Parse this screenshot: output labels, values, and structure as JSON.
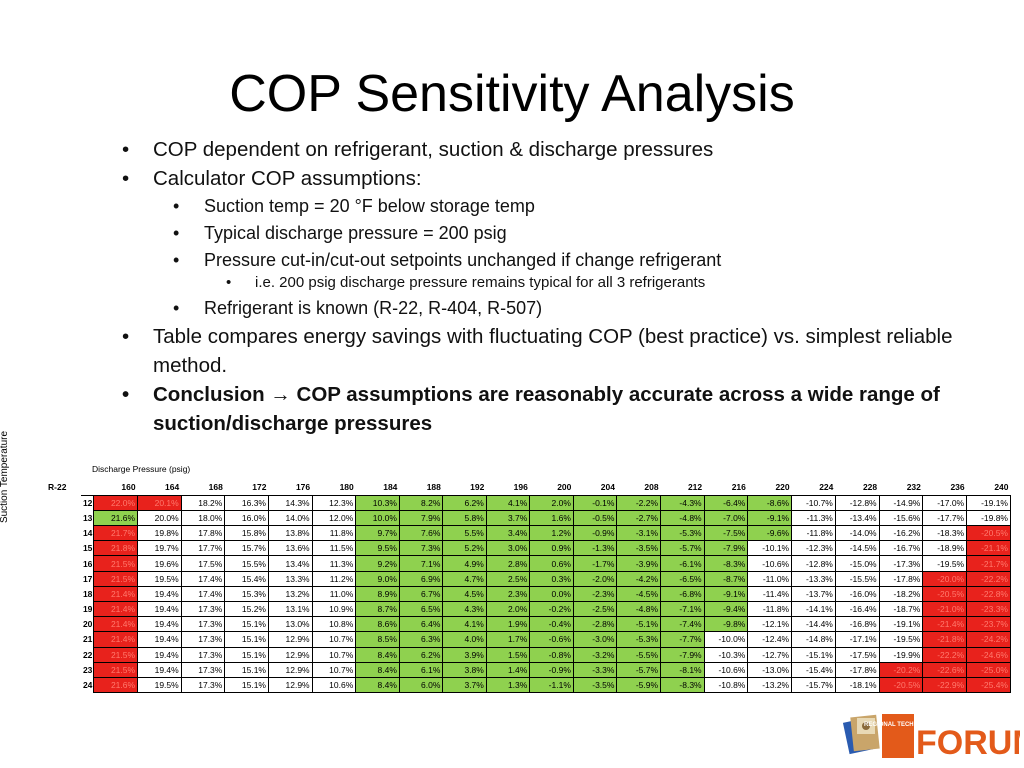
{
  "title": "COP Sensitivity Analysis",
  "bullets": {
    "b1": "COP dependent on refrigerant, suction & discharge pressures",
    "b2": "Calculator COP assumptions:",
    "b2a": "Suction temp = 20 °F below storage temp",
    "b2b": "Typical discharge pressure = 200 psig",
    "b2c": "Pressure cut-in/cut-out setpoints unchanged if change refrigerant",
    "b2c1": "i.e. 200 psig discharge pressure remains typical for all 3 refrigerants",
    "b2d": "Refrigerant is known (R-22, R-404, R-507)",
    "b3": "Table compares energy savings with fluctuating COP (best practice) vs. simplest reliable method.",
    "b4_label": "Conclusion",
    "b4_arrow": "→",
    "b4_text": "COP assumptions are reasonably accurate across a wide range of suction/discharge pressures"
  },
  "table": {
    "refrigerant": "R-22",
    "discharge_caption": "Discharge Pressure (psig)",
    "suction_label": "Suction Temperature",
    "colors": {
      "green": "#8fd14f",
      "red": "#e8221c"
    },
    "columns": [
      "160",
      "164",
      "168",
      "172",
      "176",
      "180",
      "184",
      "188",
      "192",
      "196",
      "200",
      "204",
      "208",
      "212",
      "216",
      "220",
      "224",
      "228",
      "232",
      "236",
      "240"
    ],
    "rows": [
      {
        "label": "12",
        "cells": [
          "22.0%",
          "20.1%",
          "18.2%",
          "16.3%",
          "14.3%",
          "12.3%",
          "10.3%",
          "8.2%",
          "6.2%",
          "4.1%",
          "2.0%",
          "-0.1%",
          "-2.2%",
          "-4.3%",
          "-6.4%",
          "-8.6%",
          "-10.7%",
          "-12.8%",
          "-14.9%",
          "-17.0%",
          "-19.1%"
        ],
        "marks": "rr....gggggggggg....."
      },
      {
        "label": "13",
        "cells": [
          "21.6%",
          "20.0%",
          "18.0%",
          "16.0%",
          "14.0%",
          "12.0%",
          "10.0%",
          "7.9%",
          "5.8%",
          "3.7%",
          "1.6%",
          "-0.5%",
          "-2.7%",
          "-4.8%",
          "-7.0%",
          "-9.1%",
          "-11.3%",
          "-13.4%",
          "-15.6%",
          "-17.7%",
          "-19.8%"
        ],
        "marks": "g.....gggggggggg....."
      },
      {
        "label": "14",
        "cells": [
          "21.7%",
          "19.8%",
          "17.8%",
          "15.8%",
          "13.8%",
          "11.8%",
          "9.7%",
          "7.6%",
          "5.5%",
          "3.4%",
          "1.2%",
          "-0.9%",
          "-3.1%",
          "-5.3%",
          "-7.5%",
          "-9.6%",
          "-11.8%",
          "-14.0%",
          "-16.2%",
          "-18.3%",
          "-20.5%"
        ],
        "marks": "r.....gggggggggg....r"
      },
      {
        "label": "15",
        "cells": [
          "21.8%",
          "19.7%",
          "17.7%",
          "15.7%",
          "13.6%",
          "11.5%",
          "9.5%",
          "7.3%",
          "5.2%",
          "3.0%",
          "0.9%",
          "-1.3%",
          "-3.5%",
          "-5.7%",
          "-7.9%",
          "-10.1%",
          "-12.3%",
          "-14.5%",
          "-16.7%",
          "-18.9%",
          "-21.1%"
        ],
        "marks": "r.....ggggggggg.....r"
      },
      {
        "label": "16",
        "cells": [
          "21.5%",
          "19.6%",
          "17.5%",
          "15.5%",
          "13.4%",
          "11.3%",
          "9.2%",
          "7.1%",
          "4.9%",
          "2.8%",
          "0.6%",
          "-1.7%",
          "-3.9%",
          "-6.1%",
          "-8.3%",
          "-10.6%",
          "-12.8%",
          "-15.0%",
          "-17.3%",
          "-19.5%",
          "-21.7%"
        ],
        "marks": "r.....ggggggggg.....r"
      },
      {
        "label": "17",
        "cells": [
          "21.5%",
          "19.5%",
          "17.4%",
          "15.4%",
          "13.3%",
          "11.2%",
          "9.0%",
          "6.9%",
          "4.7%",
          "2.5%",
          "0.3%",
          "-2.0%",
          "-4.2%",
          "-6.5%",
          "-8.7%",
          "-11.0%",
          "-13.3%",
          "-15.5%",
          "-17.8%",
          "-20.0%",
          "-22.2%"
        ],
        "marks": "r.....ggggggggg....rr"
      },
      {
        "label": "18",
        "cells": [
          "21.4%",
          "19.4%",
          "17.4%",
          "15.3%",
          "13.2%",
          "11.0%",
          "8.9%",
          "6.7%",
          "4.5%",
          "2.3%",
          "0.0%",
          "-2.3%",
          "-4.5%",
          "-6.8%",
          "-9.1%",
          "-11.4%",
          "-13.7%",
          "-16.0%",
          "-18.2%",
          "-20.5%",
          "-22.8%"
        ],
        "marks": "r.....ggggggggg....rr"
      },
      {
        "label": "19",
        "cells": [
          "21.4%",
          "19.4%",
          "17.3%",
          "15.2%",
          "13.1%",
          "10.9%",
          "8.7%",
          "6.5%",
          "4.3%",
          "2.0%",
          "-0.2%",
          "-2.5%",
          "-4.8%",
          "-7.1%",
          "-9.4%",
          "-11.8%",
          "-14.1%",
          "-16.4%",
          "-18.7%",
          "-21.0%",
          "-23.3%"
        ],
        "marks": "r.....ggggggggg....rr"
      },
      {
        "label": "20",
        "cells": [
          "21.4%",
          "19.4%",
          "17.3%",
          "15.1%",
          "13.0%",
          "10.8%",
          "8.6%",
          "6.4%",
          "4.1%",
          "1.9%",
          "-0.4%",
          "-2.8%",
          "-5.1%",
          "-7.4%",
          "-9.8%",
          "-12.1%",
          "-14.4%",
          "-16.8%",
          "-19.1%",
          "-21.4%",
          "-23.7%"
        ],
        "marks": "r.....ggggggggg....rr"
      },
      {
        "label": "21",
        "cells": [
          "21.4%",
          "19.4%",
          "17.3%",
          "15.1%",
          "12.9%",
          "10.7%",
          "8.5%",
          "6.3%",
          "4.0%",
          "1.7%",
          "-0.6%",
          "-3.0%",
          "-5.3%",
          "-7.7%",
          "-10.0%",
          "-12.4%",
          "-14.8%",
          "-17.1%",
          "-19.5%",
          "-21.8%",
          "-24.2%"
        ],
        "marks": "r.....gggggggg.....rr"
      },
      {
        "label": "22",
        "cells": [
          "21.5%",
          "19.4%",
          "17.3%",
          "15.1%",
          "12.9%",
          "10.7%",
          "8.4%",
          "6.2%",
          "3.9%",
          "1.5%",
          "-0.8%",
          "-3.2%",
          "-5.5%",
          "-7.9%",
          "-10.3%",
          "-12.7%",
          "-15.1%",
          "-17.5%",
          "-19.9%",
          "-22.2%",
          "-24.6%"
        ],
        "marks": "r.....gggggggg.....rr"
      },
      {
        "label": "23",
        "cells": [
          "21.5%",
          "19.4%",
          "17.3%",
          "15.1%",
          "12.9%",
          "10.7%",
          "8.4%",
          "6.1%",
          "3.8%",
          "1.4%",
          "-0.9%",
          "-3.3%",
          "-5.7%",
          "-8.1%",
          "-10.6%",
          "-13.0%",
          "-15.4%",
          "-17.8%",
          "-20.2%",
          "-22.6%",
          "-25.0%"
        ],
        "marks": "r.....gggggggg....rrr"
      },
      {
        "label": "24",
        "cells": [
          "21.6%",
          "19.5%",
          "17.3%",
          "15.1%",
          "12.9%",
          "10.6%",
          "8.4%",
          "6.0%",
          "3.7%",
          "1.3%",
          "-1.1%",
          "-3.5%",
          "-5.9%",
          "-8.3%",
          "-10.8%",
          "-13.2%",
          "-15.7%",
          "-18.1%",
          "-20.5%",
          "-22.9%",
          "-25.4%"
        ],
        "marks": "r.....gggggggg....rrr"
      }
    ]
  },
  "logo": {
    "text": "FORUM",
    "small_text": "REGIONAL TECHNICAL",
    "colors": {
      "orange": "#e35a1a",
      "tan": "#c9a56a",
      "blue": "#2a5bb0"
    }
  }
}
